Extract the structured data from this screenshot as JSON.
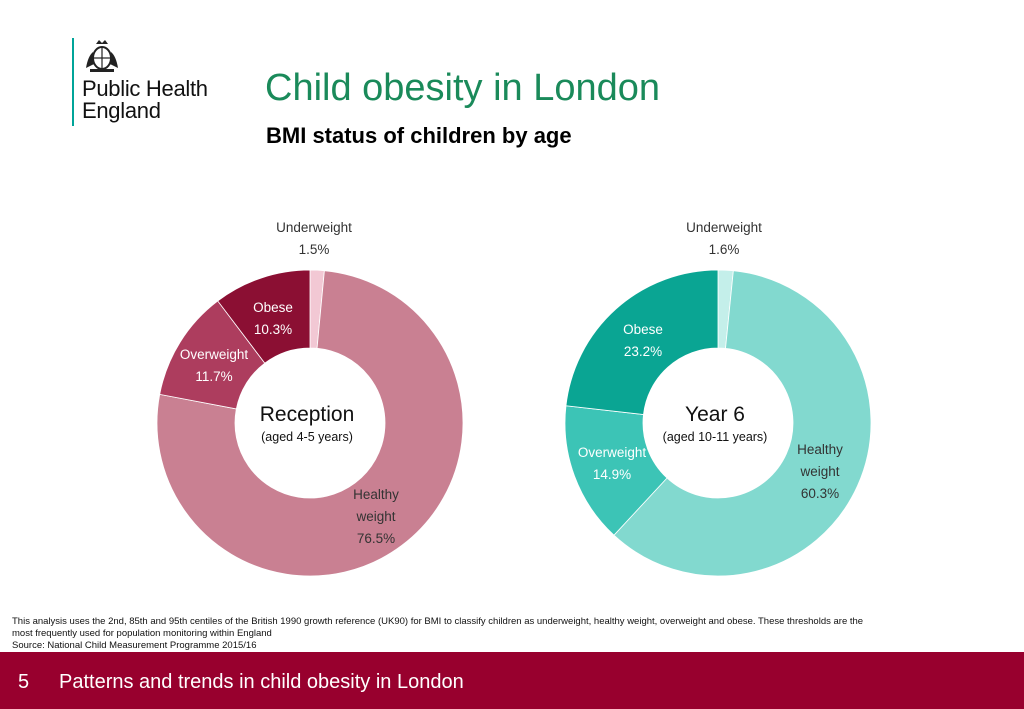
{
  "slide": {
    "logo_lines": [
      "Public Health",
      "England"
    ],
    "title": "Child obesity in London",
    "subtitle": "BMI status of children by age",
    "footnote_lines": [
      "This analysis uses the 2nd, 85th and 95th centiles of the British 1990 growth reference (UK90) for BMI to classify children as underweight, healthy weight, overweight and obese. These thresholds are the",
      "most frequently used for population monitoring within England",
      "Source: National Child Measurement Programme 2015/16"
    ],
    "page_number": "5",
    "footer_text": "Patterns and trends in child obesity in London"
  },
  "chart_data": [
    {
      "type": "pie",
      "donut": true,
      "center_title": "Reception",
      "center_subtitle": "(aged 4-5 years)",
      "slices": [
        {
          "label": "Underweight",
          "value": 1.5,
          "value_label": "1.5%",
          "color": "#f2c8d4"
        },
        {
          "label": "Healthy weight",
          "value": 76.5,
          "value_label": "76.5%",
          "color": "#c98092"
        },
        {
          "label": "Overweight",
          "value": 11.7,
          "value_label": "11.7%",
          "color": "#ad3d5e"
        },
        {
          "label": "Obese",
          "value": 10.3,
          "value_label": "10.3%",
          "color": "#8b0f33"
        }
      ]
    },
    {
      "type": "pie",
      "donut": true,
      "center_title": "Year 6",
      "center_subtitle": "(aged 10-11 years)",
      "slices": [
        {
          "label": "Underweight",
          "value": 1.6,
          "value_label": "1.6%",
          "color": "#c4efea"
        },
        {
          "label": "Healthy weight",
          "value": 60.3,
          "value_label": "60.3%",
          "color": "#82d9cf"
        },
        {
          "label": "Overweight",
          "value": 14.9,
          "value_label": "14.9%",
          "color": "#3cc4b6"
        },
        {
          "label": "Obese",
          "value": 23.2,
          "value_label": "23.2%",
          "color": "#0aa593"
        }
      ]
    }
  ],
  "colors": {
    "footer_bg": "#98002e",
    "title": "#1a8a5a",
    "logo_rule": "#00a499"
  }
}
